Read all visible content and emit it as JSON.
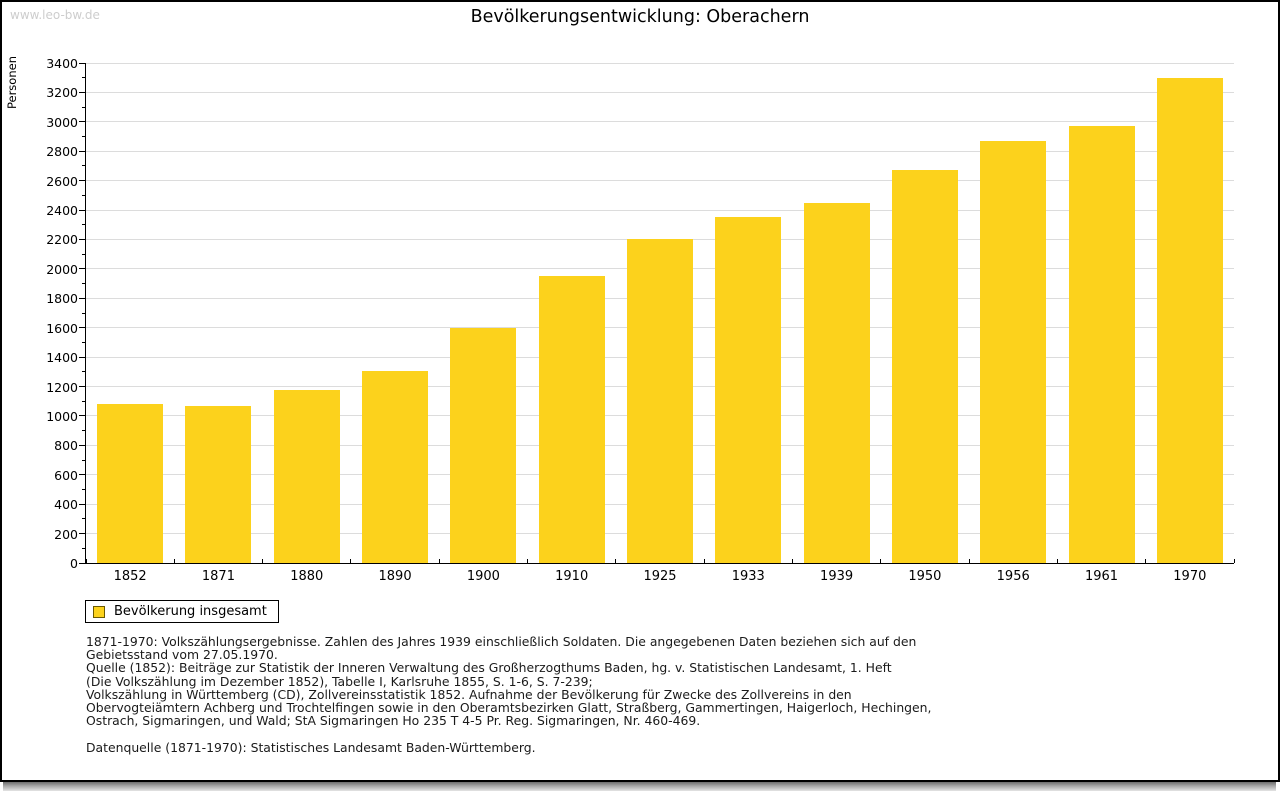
{
  "watermark": "www.leo-bw.de",
  "chart_data": {
    "type": "bar",
    "title": "Bevölkerungsentwicklung: Oberachern",
    "xlabel": "",
    "ylabel": "Personen",
    "categories": [
      "1852",
      "1871",
      "1880",
      "1890",
      "1900",
      "1910",
      "1925",
      "1933",
      "1939",
      "1950",
      "1956",
      "1961",
      "1970"
    ],
    "series": [
      {
        "name": "Bevölkerung insgesamt",
        "values": [
          1080,
          1070,
          1175,
          1305,
          1600,
          1950,
          2200,
          2350,
          2450,
          2675,
          2870,
          2975,
          3300
        ]
      }
    ],
    "ylim": [
      0,
      3400
    ],
    "ytick_major": 200,
    "ytick_minor": 100,
    "grid": true,
    "legend_position": "bottom-left",
    "bar_color": "#fcd21c"
  },
  "colors": {
    "bar": "#fcd21c",
    "swatch_border": "#6b5900",
    "gridline": "#dcdcdc",
    "axis": "#000000",
    "watermark_text": "#cdcdcd"
  },
  "footnotes": [
    "1871-1970: Volkszählungsergebnisse. Zahlen des Jahres 1939 einschließlich Soldaten. Die angegebenen Daten beziehen sich auf den",
    "Gebietsstand vom 27.05.1970.",
    "Quelle (1852): Beiträge zur Statistik der Inneren Verwaltung des Großherzogthums Baden, hg. v. Statistischen Landesamt, 1. Heft",
    "(Die Volkszählung im Dezember 1852), Tabelle I, Karlsruhe 1855, S. 1-6, S. 7-239;",
    "Volkszählung in Württemberg (CD), Zollvereinsstatistik 1852. Aufnahme der Bevölkerung für Zwecke des Zollvereins in den",
    "Obervogteiämtern Achberg und Trochtelfingen sowie in den Oberamtsbezirken Glatt, Straßberg, Gammertingen, Haigerloch, Hechingen,",
    "Ostrach, Sigmaringen, und Wald; StA Sigmaringen Ho 235 T 4-5 Pr. Reg. Sigmaringen, Nr. 460-469.",
    "",
    "Datenquelle (1871-1970): Statistisches Landesamt Baden-Württemberg."
  ]
}
